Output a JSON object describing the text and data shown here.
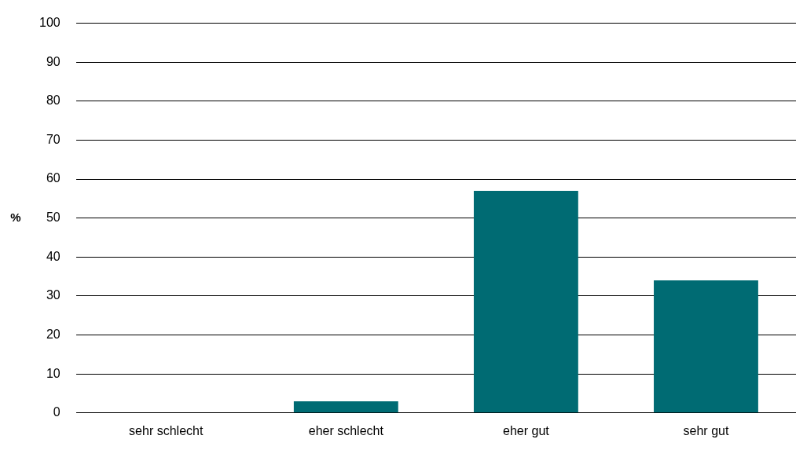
{
  "chart_data": {
    "type": "bar",
    "ylabel": "%",
    "categories": [
      "sehr schlecht",
      "eher schlecht",
      "eher gut",
      "sehr gut"
    ],
    "values": [
      0,
      3,
      57,
      34
    ],
    "color": "#006b73",
    "ylim": [
      0,
      100
    ],
    "yticks": [
      0,
      10,
      20,
      30,
      40,
      50,
      60,
      70,
      80,
      90,
      100
    ],
    "grid": "y",
    "legend": false
  }
}
